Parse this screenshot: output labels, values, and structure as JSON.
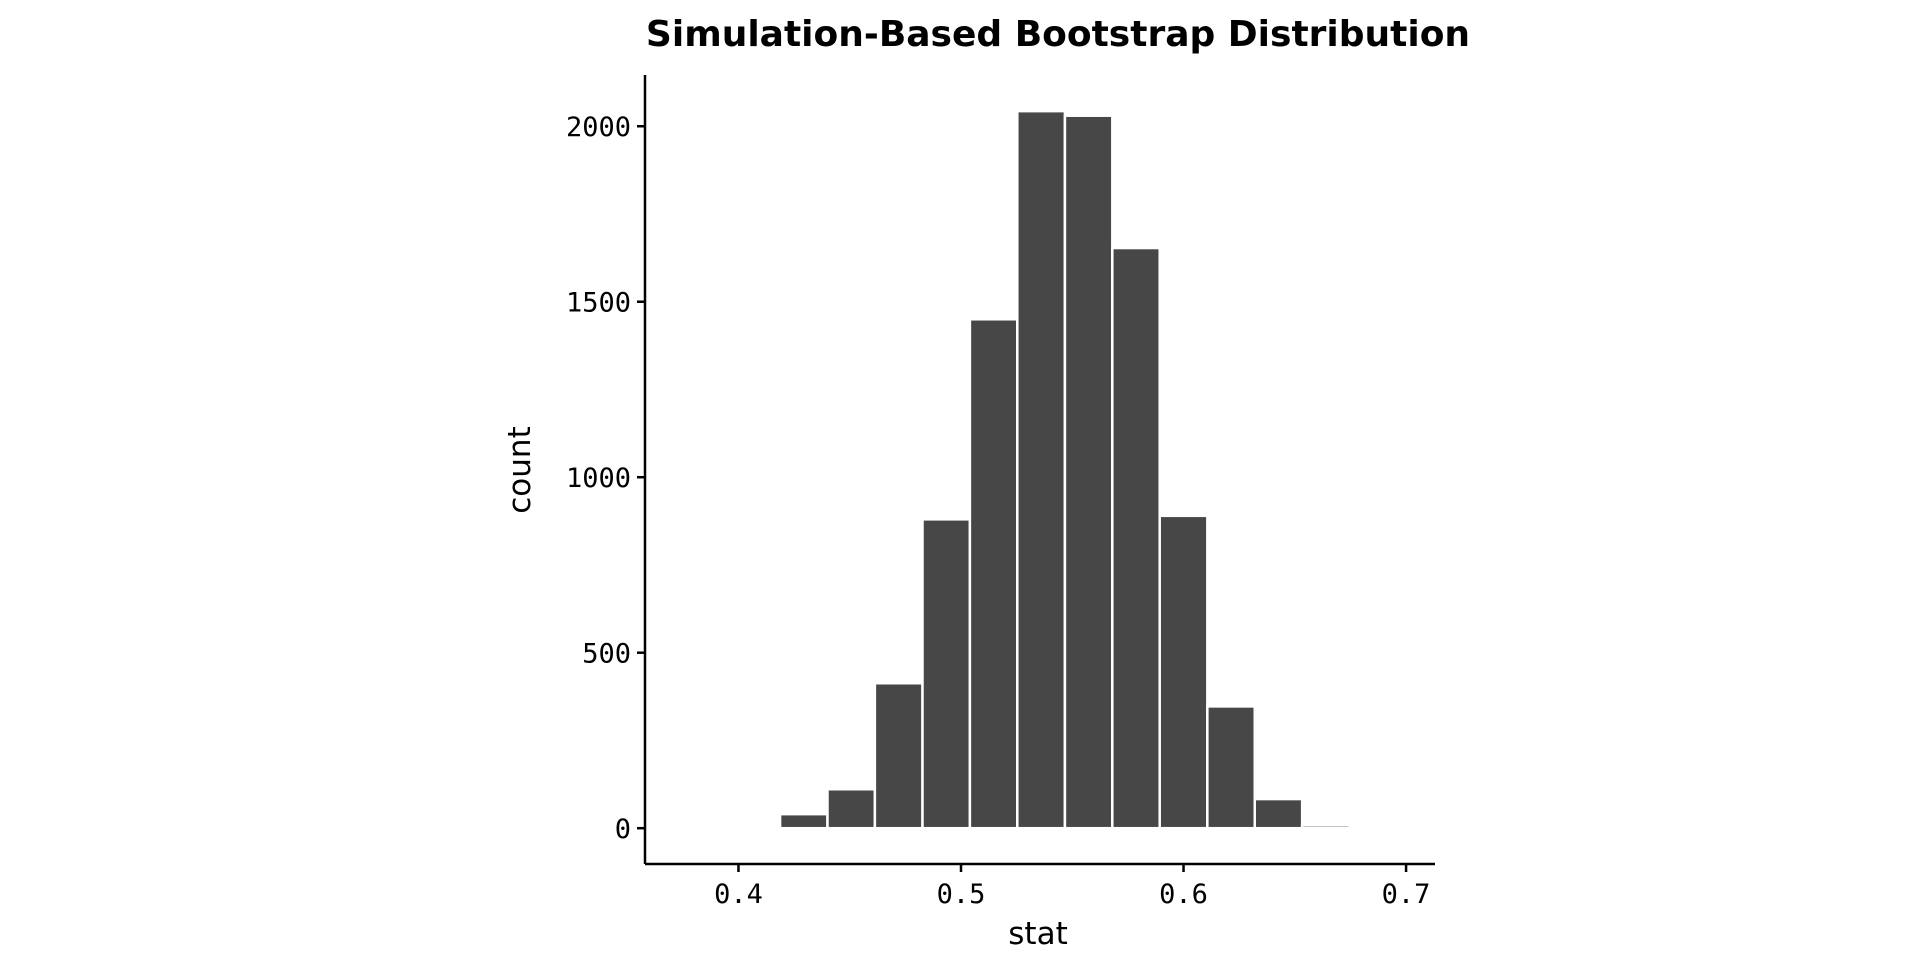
{
  "chart_data": {
    "type": "bar",
    "title": "Simulation-Based Bootstrap Distribution",
    "xlabel": "stat",
    "ylabel": "count",
    "bin_width": 0.0213,
    "bins": [
      {
        "x_start": 0.4187,
        "x_end": 0.44,
        "count": 40
      },
      {
        "x_start": 0.44,
        "x_end": 0.4613,
        "count": 111
      },
      {
        "x_start": 0.4613,
        "x_end": 0.4827,
        "count": 413
      },
      {
        "x_start": 0.4827,
        "x_end": 0.504,
        "count": 880
      },
      {
        "x_start": 0.504,
        "x_end": 0.5253,
        "count": 1450
      },
      {
        "x_start": 0.5253,
        "x_end": 0.5467,
        "count": 2043
      },
      {
        "x_start": 0.5467,
        "x_end": 0.568,
        "count": 2030
      },
      {
        "x_start": 0.568,
        "x_end": 0.5893,
        "count": 1653
      },
      {
        "x_start": 0.5893,
        "x_end": 0.6107,
        "count": 890
      },
      {
        "x_start": 0.6107,
        "x_end": 0.632,
        "count": 347
      },
      {
        "x_start": 0.632,
        "x_end": 0.6533,
        "count": 83
      },
      {
        "x_start": 0.6533,
        "x_end": 0.6747,
        "count": 8
      }
    ],
    "x_ticks": [
      "0.4",
      "0.5",
      "0.6",
      "0.7"
    ],
    "y_ticks": [
      "0",
      "500",
      "1000",
      "1500",
      "2000"
    ],
    "xlim": [
      0.358,
      0.713
    ],
    "ylim": [
      -102,
      2146
    ],
    "bar_color": "#474747",
    "bar_outline": "#ffffff",
    "grid": false,
    "legend": "none"
  }
}
